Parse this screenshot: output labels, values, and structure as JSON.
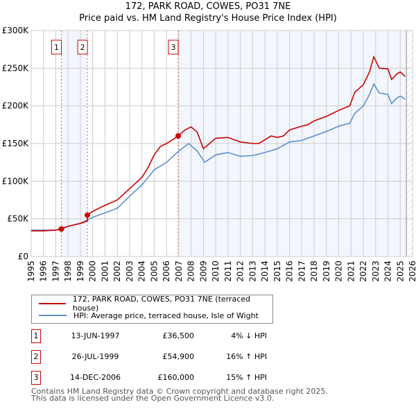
{
  "chart_data": {
    "type": "line",
    "title": "172, PARK ROAD, COWES, PO31 7NE",
    "subtitle": "Price paid vs. HM Land Registry's House Price Index (HPI)",
    "xlim": [
      1995,
      2026
    ],
    "ylim": [
      0,
      300000
    ],
    "x_ticks": [
      "1995",
      "1996",
      "1997",
      "1998",
      "1999",
      "2000",
      "2001",
      "2002",
      "2003",
      "2004",
      "2005",
      "2006",
      "2007",
      "2008",
      "2009",
      "2010",
      "2011",
      "2012",
      "2013",
      "2014",
      "2015",
      "2016",
      "2017",
      "2018",
      "2019",
      "2020",
      "2021",
      "2022",
      "2023",
      "2024",
      "2025",
      "2026"
    ],
    "y_ticks": [
      {
        "v": 0,
        "l": "£0"
      },
      {
        "v": 50000,
        "l": "£50K"
      },
      {
        "v": 100000,
        "l": "£100K"
      },
      {
        "v": 150000,
        "l": "£150K"
      },
      {
        "v": 200000,
        "l": "£200K"
      },
      {
        "v": 250000,
        "l": "£250K"
      },
      {
        "v": 300000,
        "l": "£300K"
      }
    ],
    "grid": true,
    "series": [
      {
        "name": "172, PARK ROAD, COWES, PO31 7NE (terraced house)",
        "color": "#cc0000",
        "x": [
          1995,
          1996,
          1997,
          1997.45,
          1998,
          1999,
          1999.56,
          1999.57,
          2000,
          2001,
          2002,
          2003,
          2004,
          2004.5,
          2005,
          2005.5,
          2006,
          2006.5,
          2006.95,
          2007.5,
          2008,
          2008.5,
          2009,
          2009.5,
          2010,
          2011,
          2012,
          2013,
          2013.5,
          2014,
          2014.5,
          2015,
          2015.5,
          2016,
          2017,
          2017.5,
          2018,
          2019,
          2020,
          2020.9,
          2021.3,
          2022,
          2022.5,
          2022.85,
          2023.3,
          2024,
          2024.3,
          2024.7,
          2025,
          2025.4
        ],
        "y": [
          34000,
          34000,
          35000,
          36500,
          40000,
          44000,
          47000,
          54900,
          60000,
          68000,
          75000,
          90000,
          105000,
          118000,
          135000,
          146000,
          150000,
          155000,
          160000,
          168000,
          172000,
          165000,
          143000,
          150000,
          157000,
          158000,
          152000,
          150000,
          150000,
          155000,
          160000,
          158000,
          160000,
          168000,
          173000,
          175000,
          180000,
          186000,
          194000,
          200000,
          218000,
          228000,
          245000,
          265000,
          250000,
          249000,
          235000,
          242000,
          245000,
          239000
        ]
      },
      {
        "name": "HPI: Average price, terraced house, Isle of Wight",
        "color": "#5b8fd0",
        "x": [
          1995,
          1996,
          1997,
          1998,
          1999,
          2000,
          2001,
          2002,
          2003,
          2004,
          2005,
          2006,
          2007,
          2007.8,
          2008.5,
          2009.1,
          2010,
          2011,
          2012,
          2013,
          2014,
          2015,
          2016,
          2017,
          2018,
          2019,
          2020,
          2020.9,
          2021.3,
          2022,
          2022.5,
          2022.85,
          2023.3,
          2024,
          2024.3,
          2024.7,
          2025,
          2025.4
        ],
        "y": [
          35000,
          35000,
          35000,
          40000,
          44000,
          52000,
          58000,
          64000,
          80000,
          95000,
          115000,
          125000,
          140000,
          150000,
          140000,
          125000,
          135000,
          138000,
          133000,
          134000,
          138000,
          143000,
          152000,
          154000,
          160000,
          166000,
          173000,
          177000,
          190000,
          200000,
          215000,
          229000,
          217000,
          215000,
          203000,
          210000,
          213000,
          209000
        ]
      }
    ],
    "sales": [
      {
        "n": "1",
        "x": 1997.45,
        "y": 36500,
        "date": "13-JUN-1997",
        "price": "£36,500",
        "hpi": "4% ↓ HPI"
      },
      {
        "n": "2",
        "x": 1999.57,
        "y": 54900,
        "date": "26-JUL-1999",
        "price": "£54,900",
        "hpi": "16% ↑ HPI"
      },
      {
        "n": "3",
        "x": 2006.95,
        "y": 160000,
        "date": "14-DEC-2006",
        "price": "£160,000",
        "hpi": "15% ↑ HPI"
      }
    ],
    "hatch_from": 2025.5
  },
  "legend": {
    "red": "172, PARK ROAD, COWES, PO31 7NE (terraced house)",
    "blue": "HPI: Average price, terraced house, Isle of Wight"
  },
  "footer": {
    "line1": "Contains HM Land Registry data © Crown copyright and database right 2025.",
    "line2": "This data is licensed under the Open Government Licence v3.0."
  }
}
